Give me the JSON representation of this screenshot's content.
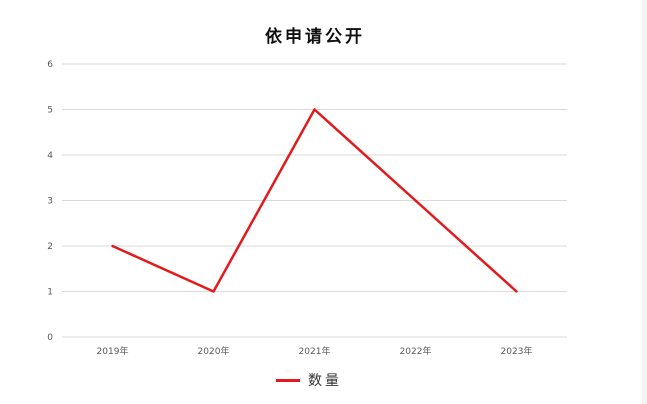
{
  "chart_data": {
    "type": "line",
    "title": "依申请公开",
    "categories": [
      "2019年",
      "2020年",
      "2021年",
      "2022年",
      "2023年"
    ],
    "series": [
      {
        "name": "数量",
        "values": [
          2,
          1,
          5,
          3,
          1
        ],
        "color": "#e31a1c"
      }
    ],
    "ylim": [
      0,
      6
    ],
    "yticks": [
      0,
      1,
      2,
      3,
      4,
      5,
      6
    ],
    "grid": true,
    "legend": "bottom",
    "xlabel": "",
    "ylabel": ""
  }
}
